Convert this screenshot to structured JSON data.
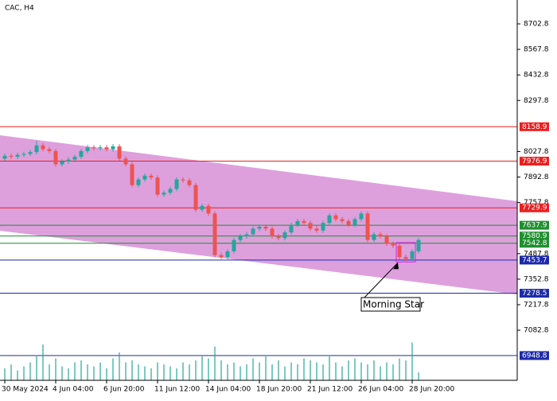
{
  "chart_data": {
    "type": "candlestick",
    "title": "CAC, H4",
    "ylim": [
      6818,
      8829
    ],
    "yticks": [
      8702.8,
      8567.8,
      8432.8,
      8297.8,
      8027.8,
      7892.8,
      7757.8,
      7487.8,
      7352.8,
      7217.8,
      7082.8
    ],
    "xticks": [
      {
        "value": 0,
        "label": "30 May 2024"
      },
      {
        "value": 8,
        "label": "4 Jun 04:00"
      },
      {
        "value": 16,
        "label": "6 Jun 20:00"
      },
      {
        "value": 24,
        "label": "11 Jun 12:00"
      },
      {
        "value": 32,
        "label": "14 Jun 04:00"
      },
      {
        "value": 40,
        "label": "18 Jun 20:00"
      },
      {
        "value": 48,
        "label": "21 Jun 12:00"
      },
      {
        "value": 56,
        "label": "26 Jun 04:00"
      },
      {
        "value": 64,
        "label": "28 Jun 20:00"
      }
    ],
    "up_color": "#26a69a",
    "down_color": "#ef5350",
    "open": [
      7990,
      8005,
      8000,
      8010,
      8015,
      8025,
      8060,
      8040,
      8030,
      7960,
      7975,
      7985,
      8000,
      8030,
      8050,
      8045,
      8050,
      8040,
      8055,
      7990,
      7960,
      7850,
      7880,
      7900,
      7890,
      7800,
      7810,
      7830,
      7880,
      7875,
      7850,
      7720,
      7740,
      7700,
      7480,
      7470,
      7500,
      7560,
      7580,
      7590,
      7620,
      7630,
      7620,
      7580,
      7570,
      7600,
      7640,
      7660,
      7650,
      7620,
      7610,
      7650,
      7690,
      7670,
      7660,
      7640,
      7670,
      7700,
      7560,
      7590,
      7580,
      7540,
      7530,
      7470,
      7460,
      7500
    ],
    "high": [
      8017,
      8017,
      8022,
      8027,
      8037,
      8085,
      8072,
      8052,
      8042,
      7987,
      7997,
      8012,
      8042,
      8062,
      8062,
      8062,
      8062,
      8067,
      8067,
      8002,
      7972,
      7892,
      7912,
      7912,
      7902,
      7822,
      7842,
      7892,
      7892,
      7887,
      7862,
      7752,
      7752,
      7712,
      7492,
      7512,
      7572,
      7592,
      7602,
      7632,
      7642,
      7642,
      7632,
      7592,
      7612,
      7652,
      7672,
      7672,
      7662,
      7632,
      7662,
      7702,
      7702,
      7682,
      7672,
      7682,
      7712,
      7712,
      7602,
      7602,
      7592,
      7552,
      7542,
      7482,
      7512,
      7572
    ],
    "low": [
      7978,
      7988,
      7988,
      7998,
      8003,
      8013,
      8028,
      8018,
      7948,
      7948,
      7963,
      7973,
      7988,
      8018,
      8033,
      8033,
      8028,
      8028,
      7978,
      7948,
      7838,
      7838,
      7868,
      7878,
      7788,
      7788,
      7798,
      7818,
      7863,
      7838,
      7708,
      7708,
      7688,
      7468,
      7458,
      7458,
      7488,
      7548,
      7568,
      7578,
      7608,
      7608,
      7568,
      7558,
      7558,
      7588,
      7628,
      7638,
      7608,
      7598,
      7598,
      7638,
      7658,
      7648,
      7628,
      7628,
      7658,
      7548,
      7548,
      7568,
      7528,
      7518,
      7458,
      7448,
      7448,
      7488
    ],
    "close": [
      8005,
      8000,
      8010,
      8015,
      8025,
      8060,
      8040,
      8030,
      7960,
      7975,
      7985,
      8000,
      8030,
      8050,
      8045,
      8050,
      8040,
      8055,
      7990,
      7960,
      7850,
      7880,
      7900,
      7890,
      7800,
      7810,
      7830,
      7880,
      7875,
      7850,
      7720,
      7740,
      7700,
      7480,
      7470,
      7500,
      7560,
      7580,
      7590,
      7620,
      7630,
      7620,
      7580,
      7570,
      7600,
      7640,
      7660,
      7650,
      7620,
      7610,
      7650,
      7690,
      7670,
      7660,
      7640,
      7670,
      7700,
      7560,
      7590,
      7580,
      7540,
      7530,
      7470,
      7460,
      7500,
      7560
    ],
    "volume_color": "#26a69a",
    "volume_lim": [
      0,
      100
    ],
    "volume": [
      30,
      40,
      25,
      35,
      45,
      60,
      90,
      40,
      55,
      35,
      30,
      45,
      50,
      40,
      35,
      45,
      30,
      55,
      70,
      45,
      50,
      40,
      35,
      30,
      45,
      40,
      35,
      30,
      45,
      40,
      50,
      60,
      55,
      85,
      50,
      40,
      45,
      35,
      40,
      55,
      45,
      60,
      40,
      50,
      35,
      45,
      40,
      55,
      50,
      45,
      40,
      60,
      45,
      35,
      50,
      55,
      45,
      40,
      50,
      35,
      45,
      40,
      55,
      50,
      95,
      20
    ],
    "levels": [
      {
        "value": 8158.9,
        "color": "#e8201f"
      },
      {
        "value": 7976.9,
        "color": "#e8201f"
      },
      {
        "value": 7729.9,
        "color": "#e8201f"
      },
      {
        "value": 7637.9,
        "color": "#1f8f2f"
      },
      {
        "value": 7580.9,
        "color": "#1f8f2f"
      },
      {
        "value": 7542.8,
        "color": "#1f8f2f"
      },
      {
        "value": 7453.7,
        "color": "#1c2aa8"
      },
      {
        "value": 7278.5,
        "color": "#1c2aa8"
      },
      {
        "value": 6948.8,
        "color": "#1c2aa8"
      }
    ],
    "channel": {
      "color": "#dda0dd",
      "upper": [
        8114,
        7765
      ],
      "lower": [
        7609,
        7272
      ]
    },
    "annotation": {
      "text": "Morning Star",
      "from": 62,
      "to": 64
    }
  }
}
